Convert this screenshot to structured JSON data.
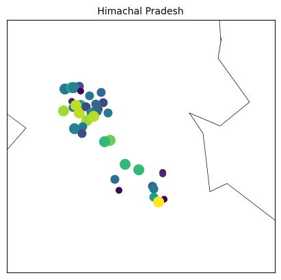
{
  "map": {
    "title": "Himachal Pradesh",
    "border_color": "#000000",
    "points": [
      {
        "color": "#2a788e",
        "size": "large"
      },
      {
        "color": "#22a884",
        "size": "large"
      },
      {
        "color": "#3b528b",
        "size": "medium"
      },
      {
        "color": "#26828e",
        "size": "large"
      },
      {
        "color": "#440154",
        "size": "small"
      },
      {
        "color": "#31688e",
        "size": "medium"
      },
      {
        "color": "#2a788e",
        "size": "medium"
      },
      {
        "color": "#3e4a89",
        "size": "medium"
      },
      {
        "color": "#482878",
        "size": "small"
      },
      {
        "color": "#440154",
        "size": "small"
      },
      {
        "color": "#31688e",
        "size": "medium"
      },
      {
        "color": "#1f9e89",
        "size": "large"
      },
      {
        "color": "#2a788e",
        "size": "medium"
      },
      {
        "color": "#bddf26",
        "size": "large"
      },
      {
        "color": "#a0da39",
        "size": "large"
      },
      {
        "color": "#bddf26",
        "size": "large"
      },
      {
        "color": "#3e4a89",
        "size": "medium"
      },
      {
        "color": "#2a788e",
        "size": "large"
      },
      {
        "color": "#440154",
        "size": "small"
      },
      {
        "color": "#31688e",
        "size": "large"
      },
      {
        "color": "#26828e",
        "size": "medium"
      },
      {
        "color": "#a0da39",
        "size": "large"
      },
      {
        "color": "#b5de2b",
        "size": "large"
      },
      {
        "color": "#2a788e",
        "size": "medium"
      },
      {
        "color": "#26828e",
        "size": "large"
      },
      {
        "color": "#3e4a89",
        "size": "medium"
      },
      {
        "color": "#2a788e",
        "size": "medium"
      },
      {
        "color": "#6ccd5a",
        "size": "large"
      },
      {
        "color": "#35b779",
        "size": "large"
      },
      {
        "color": "#2e6f8e",
        "size": "medium"
      },
      {
        "color": "#35b779",
        "size": "large"
      },
      {
        "color": "#35b779",
        "size": "large"
      },
      {
        "color": "#440154",
        "size": "small"
      },
      {
        "color": "#31688e",
        "size": "medium"
      },
      {
        "color": "#482878",
        "size": "small"
      },
      {
        "color": "#440154",
        "size": "small"
      },
      {
        "color": "#2a788e",
        "size": "medium"
      },
      {
        "color": "#1f9e89",
        "size": "medium"
      },
      {
        "color": "#440154",
        "size": "small"
      },
      {
        "color": "#fde725",
        "size": "large"
      }
    ]
  }
}
